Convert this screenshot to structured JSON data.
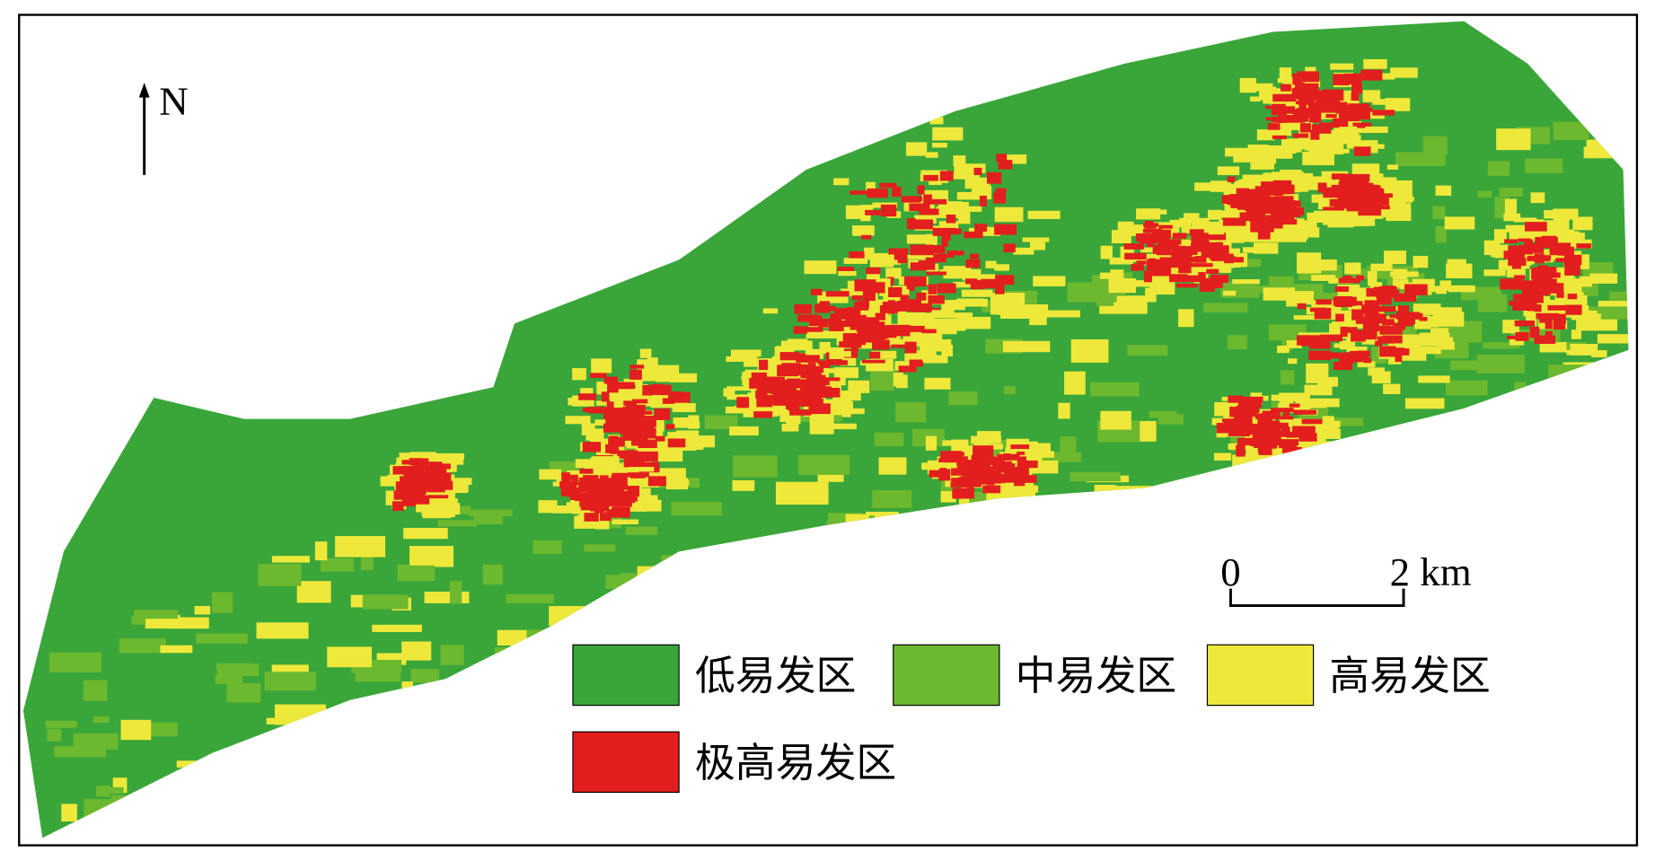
{
  "north_label": "N",
  "scale_bar": {
    "start_label": "0",
    "end_label": "2 km"
  },
  "legend": [
    {
      "label": "低易发区",
      "color": "#3aa63a"
    },
    {
      "label": "中易发区",
      "color": "#6cb82e"
    },
    {
      "label": "高易发区",
      "color": "#eee83a"
    },
    {
      "label": "极高易发区",
      "color": "#e31e1e"
    }
  ]
}
